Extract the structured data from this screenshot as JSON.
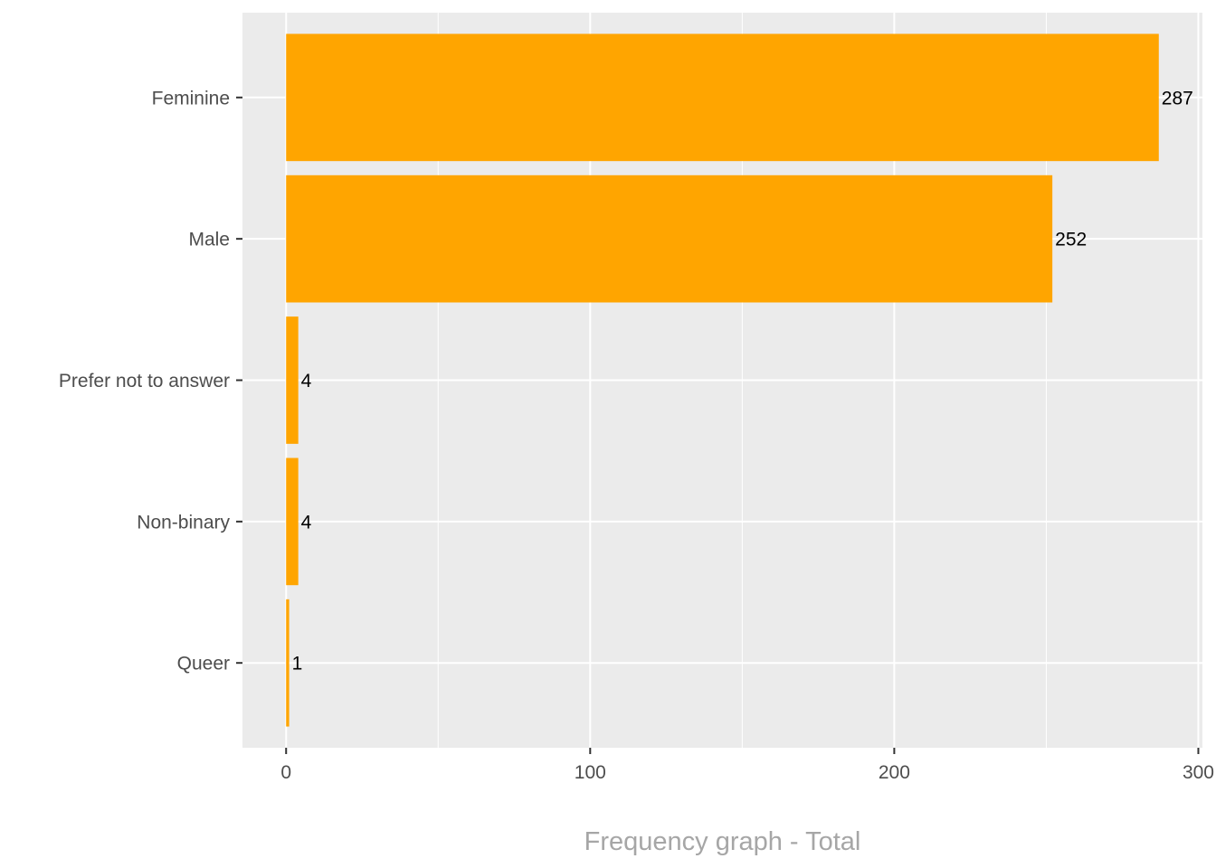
{
  "chart_data": {
    "type": "bar",
    "orientation": "horizontal",
    "categories": [
      "Feminine",
      "Male",
      "Prefer not to answer",
      "Non-binary",
      "Queer"
    ],
    "values": [
      287,
      252,
      4,
      4,
      1
    ],
    "data_labels": [
      "287",
      "252",
      "4",
      "4",
      "1"
    ],
    "xlabel": "Frequency graph - Total",
    "ylabel": "",
    "xlim": [
      -14.35,
      301.35
    ],
    "x_ticks": [
      0,
      100,
      200,
      300
    ],
    "x_tick_labels": [
      "0",
      "100",
      "200",
      "300"
    ],
    "grid": true,
    "legend": "none",
    "colors": {
      "bar": "#FFA500",
      "panel_background": "#EBEBEB",
      "grid": "#FFFFFF",
      "tick_text": "#4D4D4D",
      "axis_title": "#A6A6A6",
      "data_label": "#000000"
    }
  }
}
